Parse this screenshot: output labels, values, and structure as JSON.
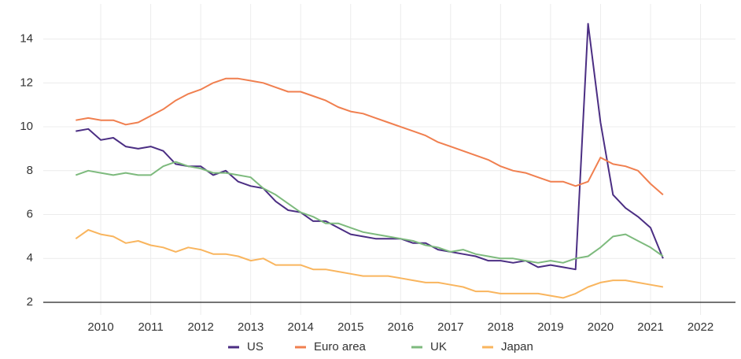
{
  "chart_data": {
    "type": "line",
    "x": [
      2010,
      2010.25,
      2010.5,
      2010.75,
      2011,
      2011.25,
      2011.5,
      2011.75,
      2012,
      2012.25,
      2012.5,
      2012.75,
      2013,
      2013.25,
      2013.5,
      2013.75,
      2014,
      2014.25,
      2014.5,
      2014.75,
      2015,
      2015.25,
      2015.5,
      2015.75,
      2016,
      2016.25,
      2016.5,
      2016.75,
      2017,
      2017.25,
      2017.5,
      2017.75,
      2018,
      2018.25,
      2018.5,
      2018.75,
      2019,
      2019.25,
      2019.5,
      2019.75,
      2020,
      2020.25,
      2020.5,
      2020.75,
      2021,
      2021.25,
      2021.5,
      2021.75
    ],
    "series": [
      {
        "name": "US",
        "color": "#4b2e83",
        "values": [
          9.8,
          9.9,
          9.4,
          9.5,
          9.1,
          9.0,
          9.1,
          8.9,
          8.3,
          8.2,
          8.2,
          7.8,
          8.0,
          7.5,
          7.3,
          7.2,
          6.6,
          6.2,
          6.1,
          5.7,
          5.7,
          5.4,
          5.1,
          5.0,
          4.9,
          4.9,
          4.9,
          4.7,
          4.7,
          4.4,
          4.3,
          4.2,
          4.1,
          3.9,
          3.9,
          3.8,
          3.9,
          3.6,
          3.7,
          3.6,
          3.5,
          14.7,
          10.2,
          6.9,
          6.3,
          5.9,
          5.4,
          4.0
        ]
      },
      {
        "name": "Euro area",
        "color": "#f07f4f",
        "values": [
          10.3,
          10.4,
          10.3,
          10.3,
          10.1,
          10.2,
          10.5,
          10.8,
          11.2,
          11.5,
          11.7,
          12.0,
          12.2,
          12.2,
          12.1,
          12.0,
          11.8,
          11.6,
          11.6,
          11.4,
          11.2,
          10.9,
          10.7,
          10.6,
          10.4,
          10.2,
          10.0,
          9.8,
          9.6,
          9.3,
          9.1,
          8.9,
          8.7,
          8.5,
          8.2,
          8.0,
          7.9,
          7.7,
          7.5,
          7.5,
          7.3,
          7.5,
          8.6,
          8.3,
          8.2,
          8.0,
          7.4,
          6.9
        ]
      },
      {
        "name": "UK",
        "color": "#7dba7d",
        "values": [
          7.8,
          8.0,
          7.9,
          7.8,
          7.9,
          7.8,
          7.8,
          8.2,
          8.4,
          8.2,
          8.1,
          7.9,
          7.9,
          7.8,
          7.7,
          7.2,
          6.9,
          6.5,
          6.1,
          5.9,
          5.6,
          5.6,
          5.4,
          5.2,
          5.1,
          5.0,
          4.9,
          4.8,
          4.6,
          4.5,
          4.3,
          4.4,
          4.2,
          4.1,
          4.0,
          4.0,
          3.9,
          3.8,
          3.9,
          3.8,
          4.0,
          4.1,
          4.5,
          5.0,
          5.1,
          4.8,
          4.5,
          4.1
        ]
      },
      {
        "name": "Japan",
        "color": "#f9b55e",
        "values": [
          4.9,
          5.3,
          5.1,
          5.0,
          4.7,
          4.8,
          4.6,
          4.5,
          4.3,
          4.5,
          4.4,
          4.2,
          4.2,
          4.1,
          3.9,
          4.0,
          3.7,
          3.7,
          3.7,
          3.5,
          3.5,
          3.4,
          3.3,
          3.2,
          3.2,
          3.2,
          3.1,
          3.0,
          2.9,
          2.9,
          2.8,
          2.7,
          2.5,
          2.5,
          2.4,
          2.4,
          2.4,
          2.4,
          2.3,
          2.2,
          2.4,
          2.7,
          2.9,
          3.0,
          3.0,
          2.9,
          2.8,
          2.7
        ]
      }
    ],
    "xlim": [
      2009.35,
      2023.2
    ],
    "xticks": [
      {
        "value": 2010.5,
        "label": "2010"
      },
      {
        "value": 2011.5,
        "label": "2011"
      },
      {
        "value": 2012.5,
        "label": "2012"
      },
      {
        "value": 2013.5,
        "label": "2013"
      },
      {
        "value": 2014.5,
        "label": "2014"
      },
      {
        "value": 2015.5,
        "label": "2015"
      },
      {
        "value": 2016.5,
        "label": "2016"
      },
      {
        "value": 2017.5,
        "label": "2017"
      },
      {
        "value": 2018.5,
        "label": "2018"
      },
      {
        "value": 2019.5,
        "label": "2019"
      },
      {
        "value": 2020.5,
        "label": "2020"
      },
      {
        "value": 2021.5,
        "label": "2021"
      },
      {
        "value": 2022.5,
        "label": "2022"
      }
    ],
    "ylim": [
      2,
      15.6
    ],
    "yticks": [
      2,
      4,
      6,
      8,
      10,
      12,
      14
    ],
    "grid": true,
    "legend": "bottom"
  }
}
